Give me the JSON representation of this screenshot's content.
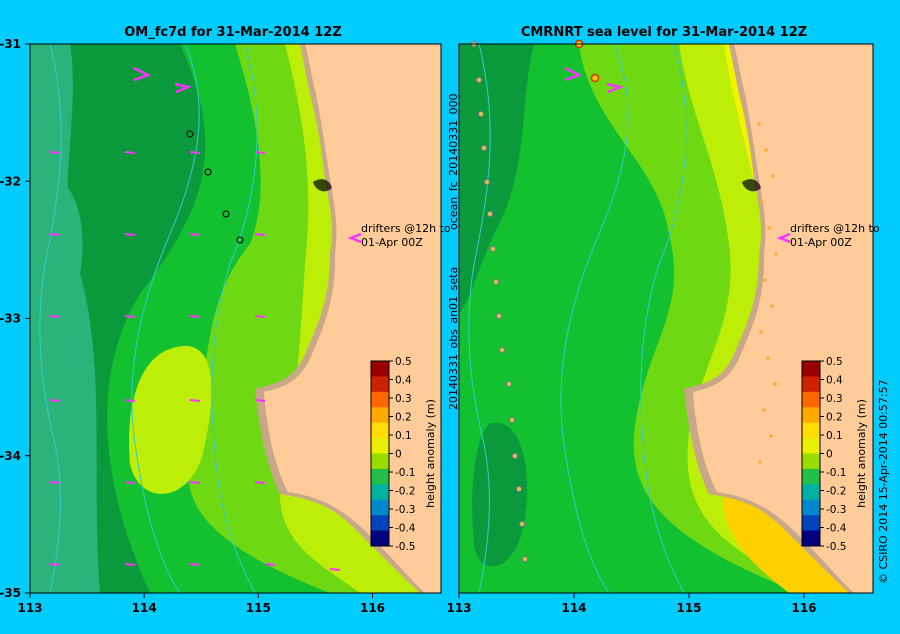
{
  "colors": {
    "background": "#00ccff",
    "land": "#ffcc99",
    "shoreline": "#c8a888",
    "contour_line": "#33cccc",
    "drifter_arrow": "#ff33ff",
    "levels": [
      "#0a9a3c",
      "#12c030",
      "#6ed812",
      "#bdee08",
      "#f3f300",
      "#ffd000"
    ]
  },
  "chart_data": [
    {
      "type": "heatmap",
      "title": "OM_fc7d for 31-Mar-2014 12Z",
      "xlim": [
        113,
        116.6
      ],
      "ylim": [
        -35,
        -31
      ],
      "x_ticks": [
        113,
        114,
        115,
        116
      ],
      "y_ticks": [
        -31,
        -32,
        -33,
        -34,
        -35
      ],
      "x_tick_labels": [
        "113",
        "114",
        "115",
        "116"
      ],
      "y_tick_labels": [
        "-31",
        "-32",
        "-33",
        "-34",
        "-35"
      ],
      "annotation": [
        "drifters @12h to",
        "01-Apr 00Z"
      ],
      "colorbar": {
        "label": "height anomaly (m)",
        "range": [
          -0.5,
          0.5
        ],
        "ticks": [
          "0.5",
          "0.4",
          "0.3",
          "0.2",
          "0.1",
          "0",
          "-0.1",
          "-0.2",
          "-0.3",
          "-0.4",
          "-0.5"
        ]
      }
    },
    {
      "type": "heatmap",
      "title": "CMRNRT sea level  for 31-Mar-2014 12Z",
      "xlim": [
        113,
        116.6
      ],
      "ylim": [
        -35,
        -31
      ],
      "x_ticks": [
        113,
        114,
        115,
        116
      ],
      "x_tick_labels": [
        "113",
        "114",
        "115",
        "116"
      ],
      "annotation": [
        "drifters @12h to",
        "01-Apr 00Z"
      ],
      "colorbar": {
        "label": "height anomaly (m)",
        "range": [
          -0.5,
          0.5
        ],
        "ticks": [
          "0.5",
          "0.4",
          "0.3",
          "0.2",
          "0.1",
          "0",
          "-0.1",
          "-0.2",
          "-0.3",
          "-0.4",
          "-0.5"
        ]
      }
    }
  ],
  "side_labels": {
    "forecast_id": "ocean_fc_20140331_000",
    "obs_id": "20140331_obs_an01_seta",
    "credit": "© CSIRO 2014   15-Apr-2014 00:57:57"
  }
}
